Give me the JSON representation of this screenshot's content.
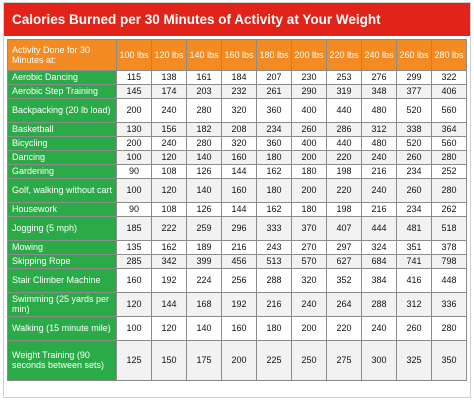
{
  "title": "Calories Burned per 30 Minutes of Activity at Your Weight",
  "table": {
    "corner": "Activity Done for 30 Minutes at:",
    "weights": [
      "100 lbs",
      "120 lbs",
      "140 lbs",
      "160 lbs",
      "180 lbs",
      "200 lbs",
      "220 lbs",
      "240 lbs",
      "260 lbs",
      "280 lbs"
    ],
    "rows": [
      {
        "activity": "Aerobic Dancing",
        "values": [
          "115",
          "138",
          "161",
          "184",
          "207",
          "230",
          "253",
          "276",
          "299",
          "322"
        ]
      },
      {
        "activity": "Aerobic Step Training",
        "values": [
          "145",
          "174",
          "203",
          "232",
          "261",
          "290",
          "319",
          "348",
          "377",
          "406"
        ]
      },
      {
        "activity": "Backpacking (20 lb load)",
        "values": [
          "200",
          "240",
          "280",
          "320",
          "360",
          "400",
          "440",
          "480",
          "520",
          "560"
        ]
      },
      {
        "activity": "Basketball",
        "values": [
          "130",
          "156",
          "182",
          "208",
          "234",
          "260",
          "286",
          "312",
          "338",
          "364"
        ]
      },
      {
        "activity": "Bicycling",
        "values": [
          "200",
          "240",
          "280",
          "320",
          "360",
          "400",
          "440",
          "480",
          "520",
          "560"
        ]
      },
      {
        "activity": "Dancing",
        "values": [
          "100",
          "120",
          "140",
          "160",
          "180",
          "200",
          "220",
          "240",
          "260",
          "280"
        ]
      },
      {
        "activity": "Gardening",
        "values": [
          "90",
          "108",
          "126",
          "144",
          "162",
          "180",
          "198",
          "216",
          "234",
          "252"
        ]
      },
      {
        "activity": "Golf, walking without cart",
        "values": [
          "100",
          "120",
          "140",
          "160",
          "180",
          "200",
          "220",
          "240",
          "260",
          "280"
        ]
      },
      {
        "activity": "Housework",
        "values": [
          "90",
          "108",
          "126",
          "144",
          "162",
          "180",
          "198",
          "216",
          "234",
          "262"
        ]
      },
      {
        "activity": "Jogging (5 mph)",
        "values": [
          "185",
          "222",
          "259",
          "296",
          "333",
          "370",
          "407",
          "444",
          "481",
          "518"
        ]
      },
      {
        "activity": "Mowing",
        "values": [
          "135",
          "162",
          "189",
          "216",
          "243",
          "270",
          "297",
          "324",
          "351",
          "378"
        ]
      },
      {
        "activity": "Skipping Rope",
        "values": [
          "285",
          "342",
          "399",
          "456",
          "513",
          "570",
          "627",
          "684",
          "741",
          "798"
        ]
      },
      {
        "activity": "Stair Climber Machine",
        "values": [
          "160",
          "192",
          "224",
          "256",
          "288",
          "320",
          "352",
          "384",
          "416",
          "448"
        ]
      },
      {
        "activity": "Swimming (25 yards per min)",
        "values": [
          "120",
          "144",
          "168",
          "192",
          "216",
          "240",
          "264",
          "288",
          "312",
          "336"
        ]
      },
      {
        "activity": "Walking (15 minute mile)",
        "values": [
          "100",
          "120",
          "140",
          "160",
          "180",
          "200",
          "220",
          "240",
          "260",
          "280"
        ]
      },
      {
        "activity": "Weight Training (90 seconds between sets)",
        "values": [
          "125",
          "150",
          "175",
          "200",
          "225",
          "250",
          "275",
          "300",
          "325",
          "350"
        ]
      }
    ]
  }
}
